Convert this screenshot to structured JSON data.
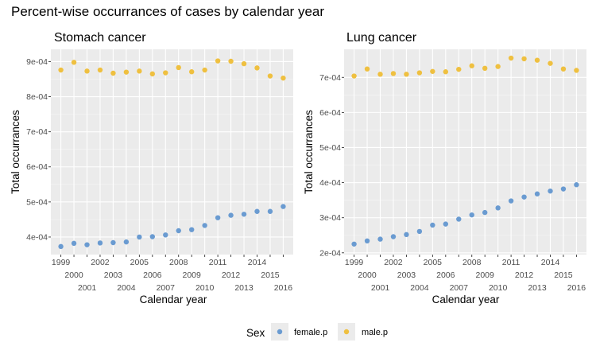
{
  "title": "Percent-wise occurrances of cases by calendar year",
  "legend": {
    "title": "Sex",
    "position": "bottom",
    "entries": [
      {
        "label": "female.p",
        "color": "#6A9BD1"
      },
      {
        "label": "male.p",
        "color": "#EFC040"
      }
    ]
  },
  "chart_data": [
    {
      "type": "scatter",
      "title": "Stomach cancer",
      "xlabel": "Calendar year",
      "ylabel": "Total occurrances",
      "x": [
        1999,
        2000,
        2001,
        2002,
        2003,
        2004,
        2005,
        2006,
        2007,
        2008,
        2009,
        2010,
        2011,
        2012,
        2013,
        2014,
        2015,
        2016
      ],
      "yticks": [
        "4e-04",
        "5e-04",
        "6e-04",
        "7e-04",
        "8e-04",
        "9e-04"
      ],
      "ytick_values": [
        0.0004,
        0.0005,
        0.0006,
        0.0007,
        0.0008,
        0.0009
      ],
      "ylim": [
        0.00035,
        0.000935
      ],
      "grid": true,
      "series": [
        {
          "name": "female.p",
          "color": "#6A9BD1",
          "values": [
            0.000373,
            0.000382,
            0.000378,
            0.000383,
            0.000384,
            0.000386,
            0.0004,
            0.000401,
            0.000406,
            0.000418,
            0.000421,
            0.000433,
            0.000455,
            0.000462,
            0.000465,
            0.000473,
            0.000473,
            0.000487
          ]
        },
        {
          "name": "male.p",
          "color": "#EFC040",
          "values": [
            0.000876,
            0.000898,
            0.000873,
            0.000876,
            0.000867,
            0.00087,
            0.000873,
            0.000865,
            0.000868,
            0.000883,
            0.000871,
            0.000876,
            0.000902,
            0.000901,
            0.000894,
            0.000882,
            0.000859,
            0.000853
          ]
        }
      ]
    },
    {
      "type": "scatter",
      "title": "Lung cancer",
      "xlabel": "Calendar year",
      "ylabel": "Total occurrances",
      "x": [
        1999,
        2000,
        2001,
        2002,
        2003,
        2004,
        2005,
        2006,
        2007,
        2008,
        2009,
        2010,
        2011,
        2012,
        2013,
        2014,
        2015,
        2016
      ],
      "yticks": [
        "2e-04",
        "3e-04",
        "4e-04",
        "5e-04",
        "6e-04",
        "7e-04"
      ],
      "ytick_values": [
        0.0002,
        0.0003,
        0.0004,
        0.0005,
        0.0006,
        0.0007
      ],
      "ylim": [
        0.000195,
        0.00078
      ],
      "grid": true,
      "series": [
        {
          "name": "female.p",
          "color": "#6A9BD1",
          "values": [
            0.000225,
            0.000234,
            0.000239,
            0.000246,
            0.000252,
            0.000261,
            0.000279,
            0.000282,
            0.000296,
            0.000308,
            0.000315,
            0.000328,
            0.000348,
            0.000359,
            0.000368,
            0.000376,
            0.000382,
            0.000394
          ]
        },
        {
          "name": "male.p",
          "color": "#EFC040",
          "values": [
            0.000704,
            0.000724,
            0.000709,
            0.000711,
            0.000709,
            0.000713,
            0.000717,
            0.000716,
            0.000723,
            0.000733,
            0.000726,
            0.000731,
            0.000755,
            0.000753,
            0.000749,
            0.00074,
            0.000724,
            0.00072
          ]
        }
      ]
    }
  ]
}
